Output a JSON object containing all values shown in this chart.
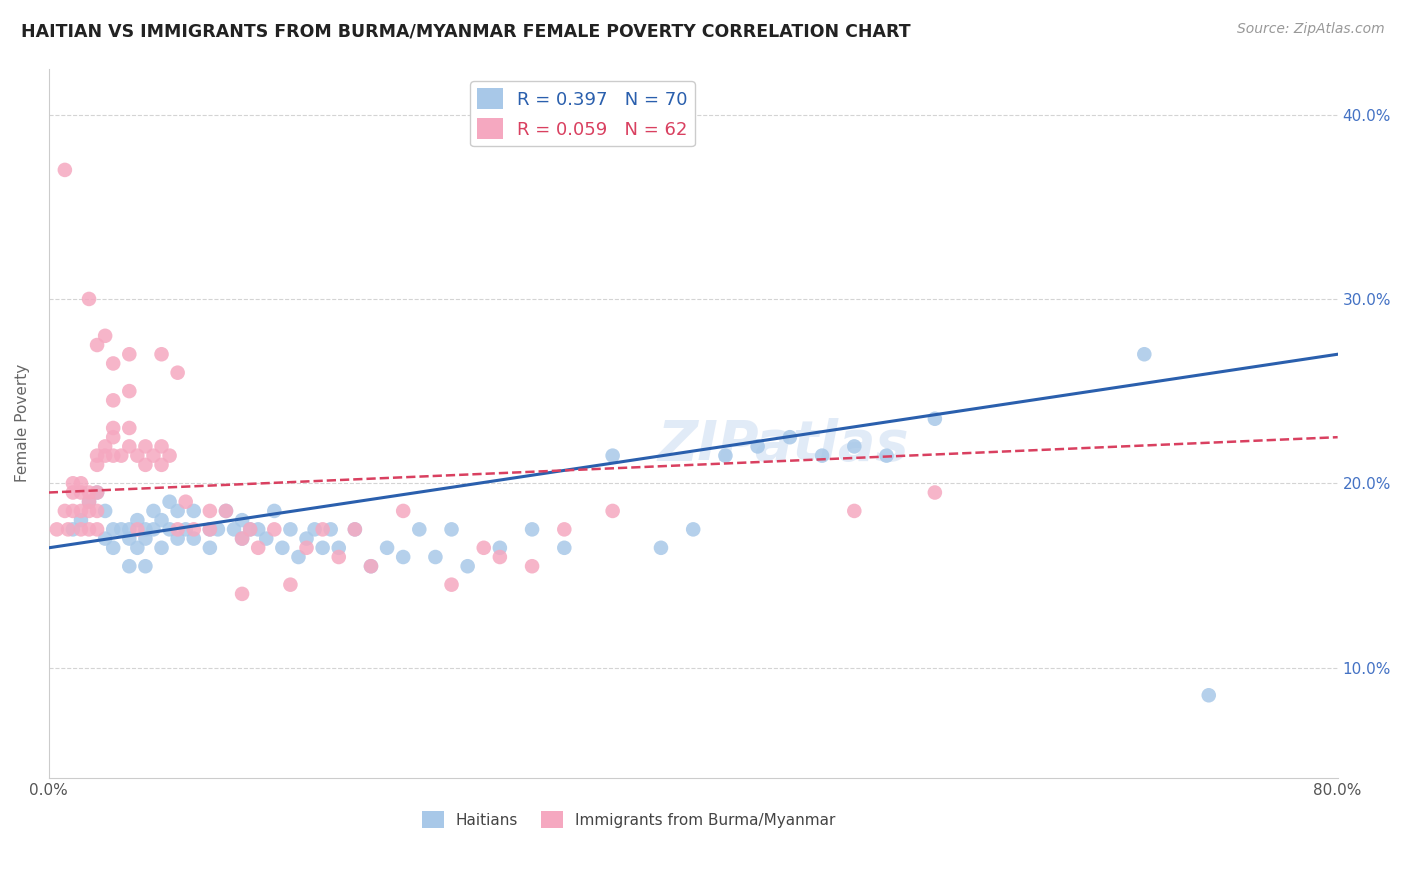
{
  "title": "HAITIAN VS IMMIGRANTS FROM BURMA/MYANMAR FEMALE POVERTY CORRELATION CHART",
  "source": "Source: ZipAtlas.com",
  "ylabel": "Female Poverty",
  "xlim": [
    0.0,
    0.8
  ],
  "ylim": [
    0.04,
    0.425
  ],
  "xticks": [
    0.0,
    0.2,
    0.4,
    0.6,
    0.8
  ],
  "xtick_labels": [
    "0.0%",
    "",
    "",
    "",
    "80.0%"
  ],
  "yticks": [
    0.1,
    0.2,
    0.3,
    0.4
  ],
  "ytick_labels": [
    "10.0%",
    "20.0%",
    "30.0%",
    "40.0%"
  ],
  "background_color": "#ffffff",
  "grid_color": "#d0d0d0",
  "blue_color": "#a8c8e8",
  "pink_color": "#f5a8c0",
  "blue_line_color": "#2a5fad",
  "pink_line_color": "#d94060",
  "watermark": "ZIPatlas",
  "legend_blue_R": "R = 0.397",
  "legend_blue_N": "N = 70",
  "legend_pink_R": "R = 0.059",
  "legend_pink_N": "N = 62",
  "haitians_x": [
    0.015,
    0.02,
    0.025,
    0.03,
    0.035,
    0.035,
    0.04,
    0.04,
    0.045,
    0.05,
    0.05,
    0.05,
    0.055,
    0.055,
    0.06,
    0.06,
    0.06,
    0.065,
    0.065,
    0.07,
    0.07,
    0.075,
    0.075,
    0.08,
    0.08,
    0.085,
    0.09,
    0.09,
    0.1,
    0.1,
    0.105,
    0.11,
    0.115,
    0.12,
    0.12,
    0.125,
    0.13,
    0.135,
    0.14,
    0.145,
    0.15,
    0.155,
    0.16,
    0.165,
    0.17,
    0.175,
    0.18,
    0.19,
    0.2,
    0.21,
    0.22,
    0.23,
    0.24,
    0.25,
    0.26,
    0.28,
    0.3,
    0.32,
    0.35,
    0.38,
    0.4,
    0.42,
    0.44,
    0.46,
    0.48,
    0.5,
    0.52,
    0.55,
    0.68,
    0.72
  ],
  "haitians_y": [
    0.175,
    0.18,
    0.19,
    0.195,
    0.17,
    0.185,
    0.165,
    0.175,
    0.175,
    0.155,
    0.17,
    0.175,
    0.165,
    0.18,
    0.155,
    0.17,
    0.175,
    0.175,
    0.185,
    0.165,
    0.18,
    0.175,
    0.19,
    0.17,
    0.185,
    0.175,
    0.17,
    0.185,
    0.175,
    0.165,
    0.175,
    0.185,
    0.175,
    0.17,
    0.18,
    0.175,
    0.175,
    0.17,
    0.185,
    0.165,
    0.175,
    0.16,
    0.17,
    0.175,
    0.165,
    0.175,
    0.165,
    0.175,
    0.155,
    0.165,
    0.16,
    0.175,
    0.16,
    0.175,
    0.155,
    0.165,
    0.175,
    0.165,
    0.215,
    0.165,
    0.175,
    0.215,
    0.22,
    0.225,
    0.215,
    0.22,
    0.215,
    0.235,
    0.27,
    0.085
  ],
  "burma_x": [
    0.005,
    0.01,
    0.012,
    0.015,
    0.015,
    0.015,
    0.02,
    0.02,
    0.02,
    0.02,
    0.025,
    0.025,
    0.025,
    0.025,
    0.03,
    0.03,
    0.03,
    0.03,
    0.03,
    0.035,
    0.035,
    0.04,
    0.04,
    0.04,
    0.04,
    0.045,
    0.05,
    0.05,
    0.05,
    0.055,
    0.055,
    0.06,
    0.06,
    0.065,
    0.07,
    0.07,
    0.075,
    0.08,
    0.085,
    0.09,
    0.1,
    0.1,
    0.11,
    0.12,
    0.125,
    0.13,
    0.14,
    0.15,
    0.16,
    0.17,
    0.18,
    0.19,
    0.2,
    0.22,
    0.25,
    0.27,
    0.28,
    0.3,
    0.32,
    0.35,
    0.5,
    0.55
  ],
  "burma_y": [
    0.175,
    0.185,
    0.175,
    0.185,
    0.195,
    0.2,
    0.175,
    0.185,
    0.195,
    0.2,
    0.175,
    0.185,
    0.195,
    0.19,
    0.175,
    0.185,
    0.195,
    0.21,
    0.215,
    0.215,
    0.22,
    0.215,
    0.225,
    0.23,
    0.245,
    0.215,
    0.22,
    0.23,
    0.25,
    0.215,
    0.175,
    0.21,
    0.22,
    0.215,
    0.21,
    0.22,
    0.215,
    0.175,
    0.19,
    0.175,
    0.185,
    0.175,
    0.185,
    0.17,
    0.175,
    0.165,
    0.175,
    0.145,
    0.165,
    0.175,
    0.16,
    0.175,
    0.155,
    0.185,
    0.145,
    0.165,
    0.16,
    0.155,
    0.175,
    0.185,
    0.185,
    0.195
  ],
  "burma_outliers_x": [
    0.01,
    0.025,
    0.03,
    0.035,
    0.04,
    0.05,
    0.07,
    0.08,
    0.12
  ],
  "burma_outliers_y": [
    0.37,
    0.3,
    0.275,
    0.28,
    0.265,
    0.27,
    0.27,
    0.26,
    0.14
  ]
}
